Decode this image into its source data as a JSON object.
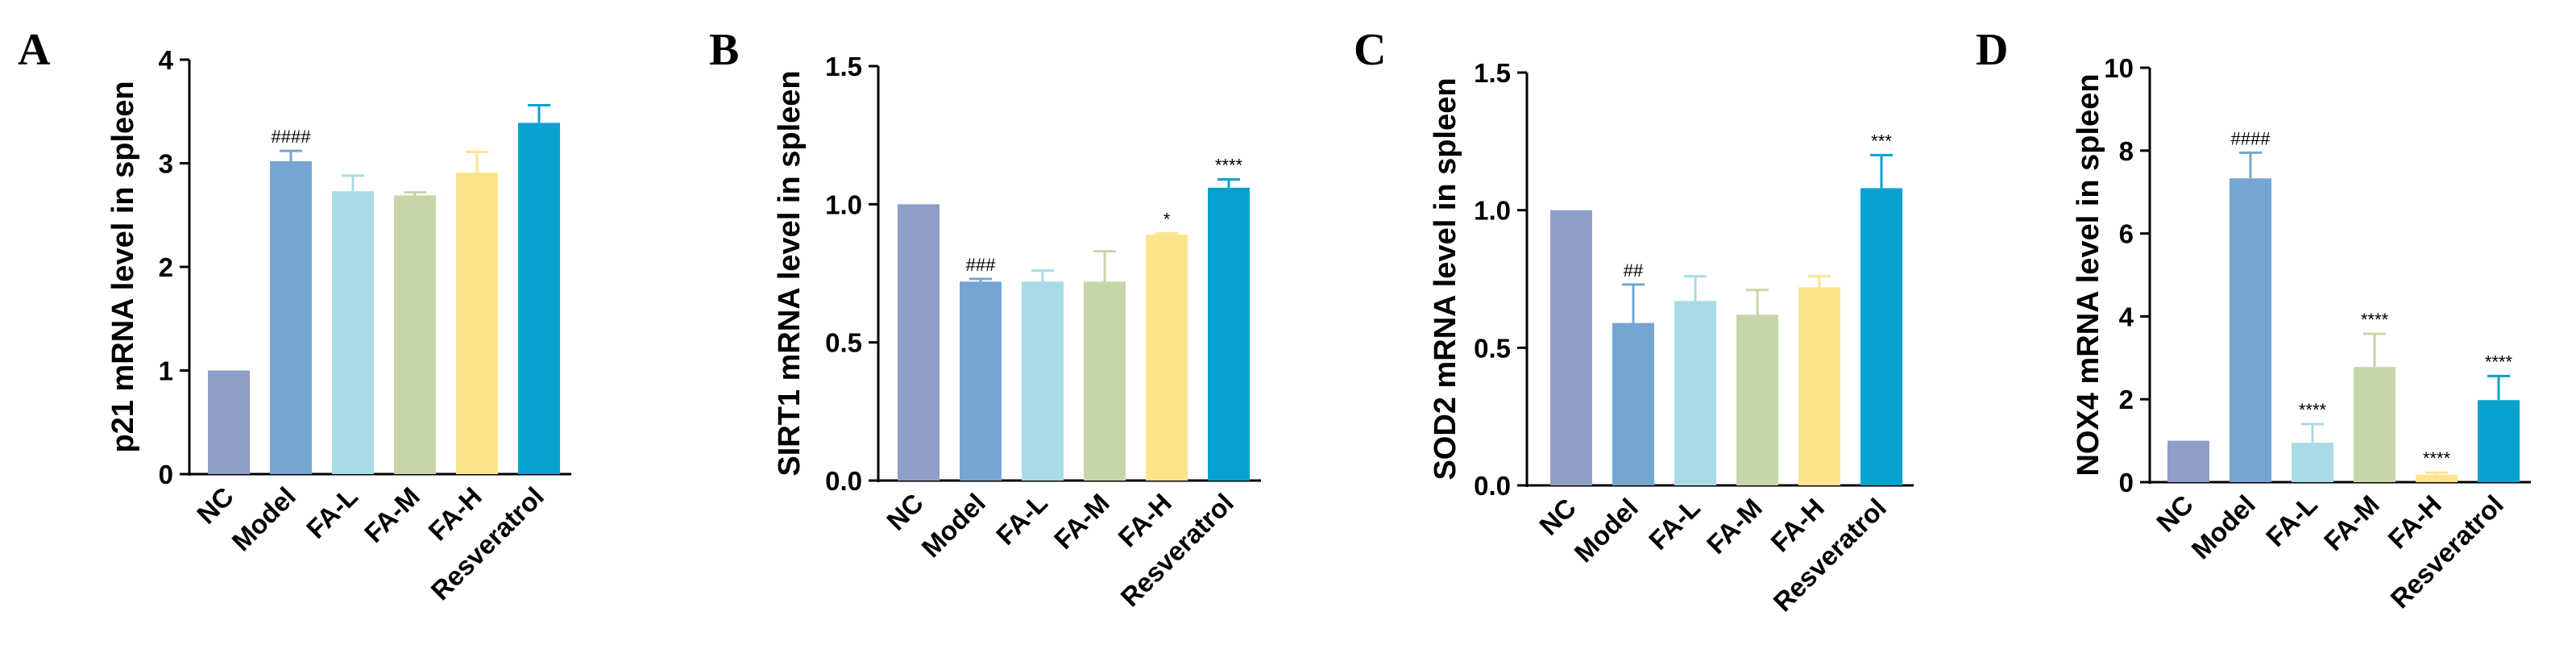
{
  "chart_data": [
    {
      "type": "bar",
      "panel_label": "A",
      "ylabel": "p21 mRNA level in spleen",
      "ylim": [
        0,
        4
      ],
      "yticks": [
        "0",
        "1",
        "2",
        "3",
        "4"
      ],
      "yticks_values": [
        0,
        1,
        2,
        3,
        4
      ],
      "categories": [
        "NC",
        "Model",
        "FA-L",
        "FA-M",
        "FA-H",
        "Resveratrol"
      ],
      "values": [
        1.0,
        3.02,
        2.73,
        2.69,
        2.91,
        3.39
      ],
      "errors": [
        0.0,
        0.1,
        0.15,
        0.03,
        0.2,
        0.17
      ],
      "annotations": [
        "",
        "####",
        "",
        "",
        "",
        ""
      ]
    },
    {
      "type": "bar",
      "panel_label": "B",
      "ylabel": "SIRT1 mRNA level in spleen",
      "ylim": [
        0,
        1.5
      ],
      "yticks": [
        "0.0",
        "0.5",
        "1.0",
        "1.5"
      ],
      "yticks_values": [
        0,
        0.5,
        1.0,
        1.5
      ],
      "categories": [
        "NC",
        "Model",
        "FA-L",
        "FA-M",
        "FA-H",
        "Resveratrol"
      ],
      "values": [
        1.0,
        0.72,
        0.72,
        0.72,
        0.89,
        1.06
      ],
      "errors": [
        0.0,
        0.01,
        0.04,
        0.11,
        0.005,
        0.03
      ],
      "annotations": [
        "",
        "###",
        "",
        "",
        "*",
        "****"
      ]
    },
    {
      "type": "bar",
      "panel_label": "C",
      "ylabel": "SOD2 mRNA level in spleen",
      "ylim": [
        0,
        1.5
      ],
      "yticks": [
        "0.0",
        "0.5",
        "1.0",
        "1.5"
      ],
      "yticks_values": [
        0,
        0.5,
        1.0,
        1.5
      ],
      "categories": [
        "NC",
        "Model",
        "FA-L",
        "FA-M",
        "FA-H",
        "Resveratrol"
      ],
      "values": [
        1.0,
        0.59,
        0.67,
        0.62,
        0.72,
        1.08
      ],
      "errors": [
        0.0,
        0.14,
        0.09,
        0.09,
        0.04,
        0.12
      ],
      "annotations": [
        "",
        "##",
        "",
        "",
        "",
        "***"
      ]
    },
    {
      "type": "bar",
      "panel_label": "D",
      "ylabel": "NOX4 mRNA level in spleen",
      "ylim": [
        0,
        10
      ],
      "yticks": [
        "0",
        "2",
        "4",
        "6",
        "8",
        "10"
      ],
      "yticks_values": [
        0,
        2,
        4,
        6,
        8,
        10
      ],
      "categories": [
        "NC",
        "Model",
        "FA-L",
        "FA-M",
        "FA-H",
        "Resveratrol"
      ],
      "values": [
        1.0,
        7.33,
        0.95,
        2.78,
        0.18,
        1.98
      ],
      "errors": [
        0.0,
        0.62,
        0.45,
        0.8,
        0.05,
        0.58
      ],
      "annotations": [
        "",
        "####",
        "****",
        "****",
        "****",
        "****"
      ]
    }
  ],
  "bar_colors": [
    "#8f9ec6",
    "#76a5d1",
    "#a8dbe6",
    "#c6d6a8",
    "#fde48c",
    "#09a2ce"
  ],
  "error_colors": [
    "#8f9ec6",
    "#76a5d1",
    "#a8dbe6",
    "#c6d6a8",
    "#fde48c",
    "#09a2ce"
  ]
}
